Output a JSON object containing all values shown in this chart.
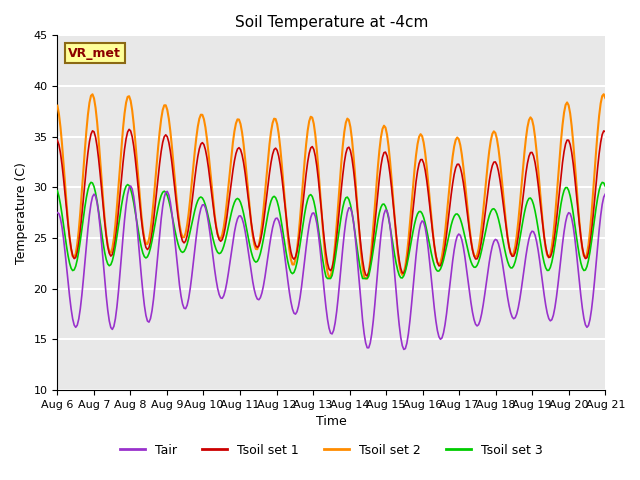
{
  "title": "Soil Temperature at -4cm",
  "xlabel": "Time",
  "ylabel": "Temperature (C)",
  "ylim": [
    10,
    45
  ],
  "xlim": [
    0,
    15
  ],
  "background_color": "#e8e8e8",
  "plot_bg_color": "#e8e8e8",
  "grid_color": "white",
  "annotation_text": "VR_met",
  "annotation_bg": "#ffff99",
  "annotation_border": "#8B6914",
  "colors": {
    "Tair": "#9932CC",
    "Tsoil1": "#CC0000",
    "Tsoil2": "#FF8C00",
    "Tsoil3": "#00CC00"
  },
  "legend_labels": [
    "Tair",
    "Tsoil set 1",
    "Tsoil set 2",
    "Tsoil set 3"
  ],
  "tick_labels": [
    "Aug 6",
    "Aug 7",
    "Aug 8",
    "Aug 9",
    "Aug 10",
    "Aug 11",
    "Aug 12",
    "Aug 13",
    "Aug 14",
    "Aug 15",
    "Aug 16",
    "Aug 17",
    "Aug 18",
    "Aug 19",
    "Aug 20",
    "Aug 21"
  ],
  "yticks": [
    10,
    15,
    20,
    25,
    30,
    35,
    40,
    45
  ],
  "n_points": 360,
  "n_days": 15
}
